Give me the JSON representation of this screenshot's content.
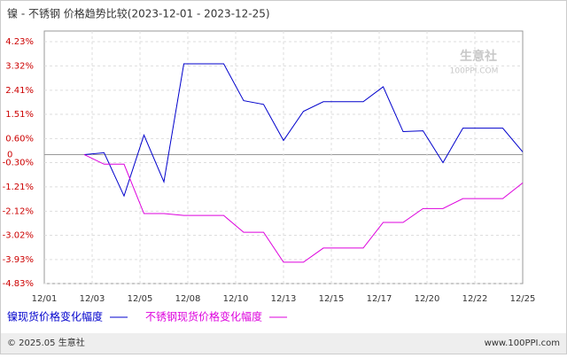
{
  "chart_data": {
    "type": "line",
    "title": "镍 - 不锈钢 价格趋势比较(2023-12-01 - 2023-12-25)",
    "watermark": {
      "name": "生意社",
      "site": "100PPI.COM"
    },
    "xticks": [
      "12/01",
      "12/03",
      "12/05",
      "12/08",
      "12/10",
      "12/13",
      "12/15",
      "12/17",
      "12/20",
      "12/22",
      "12/25"
    ],
    "points": 25,
    "series": [
      {
        "name": "镍现货价格变化幅度",
        "color": "#0000cc",
        "values": [
          null,
          null,
          0,
          0.07,
          -1.55,
          0.73,
          -1.02,
          3.4,
          3.4,
          3.4,
          2.02,
          1.88,
          0.53,
          1.62,
          1.98,
          1.98,
          1.98,
          2.54,
          0.86,
          0.89,
          -0.3,
          0.99,
          0.99,
          0.99,
          0.1
        ]
      },
      {
        "name": "不锈钢现货价格变化幅度",
        "color": "#dd00dd",
        "values": [
          null,
          null,
          0,
          -0.36,
          -0.36,
          -2.21,
          -2.21,
          -2.28,
          -2.28,
          -2.28,
          -2.91,
          -2.91,
          -4.03,
          -4.03,
          -3.5,
          -3.5,
          -3.5,
          -2.54,
          -2.54,
          -2.02,
          -2.02,
          -1.65,
          -1.65,
          -1.65,
          -1.06
        ]
      }
    ],
    "ylim": [
      -4.83,
      4.23
    ],
    "yticks": [
      {
        "value": 4.23,
        "label": "4.23%"
      },
      {
        "value": 3.32,
        "label": "3.32%"
      },
      {
        "value": 2.41,
        "label": "2.41%"
      },
      {
        "value": 1.51,
        "label": "1.51%"
      },
      {
        "value": 0.6,
        "label": "0.60%"
      },
      0,
      {
        "value": -0.3,
        "label": "-0.30%"
      },
      {
        "value": -1.21,
        "label": "-1.21%"
      },
      {
        "value": -2.12,
        "label": "-2.12%"
      },
      {
        "value": -3.02,
        "label": "-3.02%"
      },
      {
        "value": -3.93,
        "label": "-3.93%"
      },
      {
        "value": -4.83,
        "label": "-4.83%"
      }
    ],
    "grid": true,
    "footer": {
      "left": "© 2025.05 生意社",
      "right": "www.100PPI.com"
    }
  }
}
